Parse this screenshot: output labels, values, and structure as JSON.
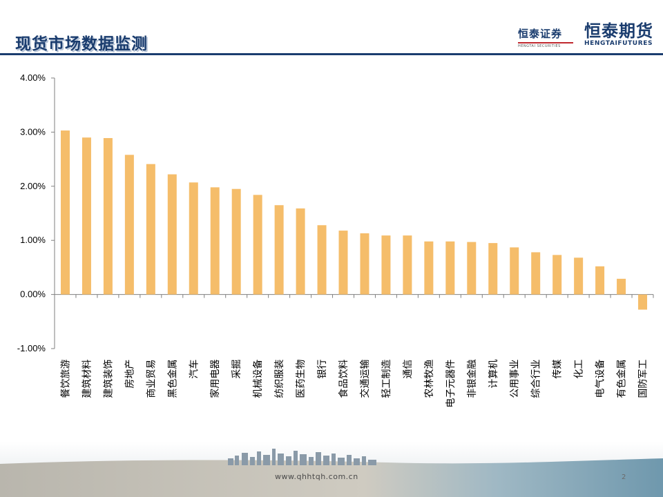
{
  "header": {
    "title": "现货市场数据监测",
    "logo_left_cn": "恒泰证券",
    "logo_left_en": "HENGTAI SECURITIES",
    "logo_right_cn": "恒泰期货",
    "logo_right_en": "HENGTAIFUTURES"
  },
  "footer": {
    "url": "www.qhhtqh.com.cn",
    "page_number": "2"
  },
  "colors": {
    "bar": "#f5bd6a",
    "title": "#1a3c6e",
    "axis": "#7f7f7f"
  },
  "chart_data": {
    "type": "bar",
    "title": "",
    "xlabel": "",
    "ylabel": "",
    "ylim": [
      -0.01,
      0.04
    ],
    "yticks": [
      "4.00%",
      "3.00%",
      "2.00%",
      "1.00%",
      "0.00%",
      "-1.00%"
    ],
    "ytick_values": [
      0.04,
      0.03,
      0.02,
      0.01,
      0.0,
      -0.01
    ],
    "grid": false,
    "categories": [
      "餐饮旅游",
      "建筑材料",
      "建筑装饰",
      "房地产",
      "商业贸易",
      "黑色金属",
      "汽车",
      "家用电器",
      "采掘",
      "机械设备",
      "纺织服装",
      "医药生物",
      "银行",
      "食品饮料",
      "交通运输",
      "轻工制造",
      "通信",
      "农林牧渔",
      "电子元器件",
      "非银金融",
      "计算机",
      "公用事业",
      "综合行业",
      "传媒",
      "化工",
      "电气设备",
      "有色金属",
      "国防军工"
    ],
    "values": [
      0.0303,
      0.029,
      0.0289,
      0.0258,
      0.0241,
      0.0222,
      0.0207,
      0.0198,
      0.0195,
      0.0184,
      0.0165,
      0.0159,
      0.0128,
      0.0118,
      0.0113,
      0.0109,
      0.0109,
      0.0098,
      0.0098,
      0.0097,
      0.0095,
      0.0087,
      0.0078,
      0.0073,
      0.0068,
      0.0052,
      0.0029,
      -0.0028
    ]
  }
}
